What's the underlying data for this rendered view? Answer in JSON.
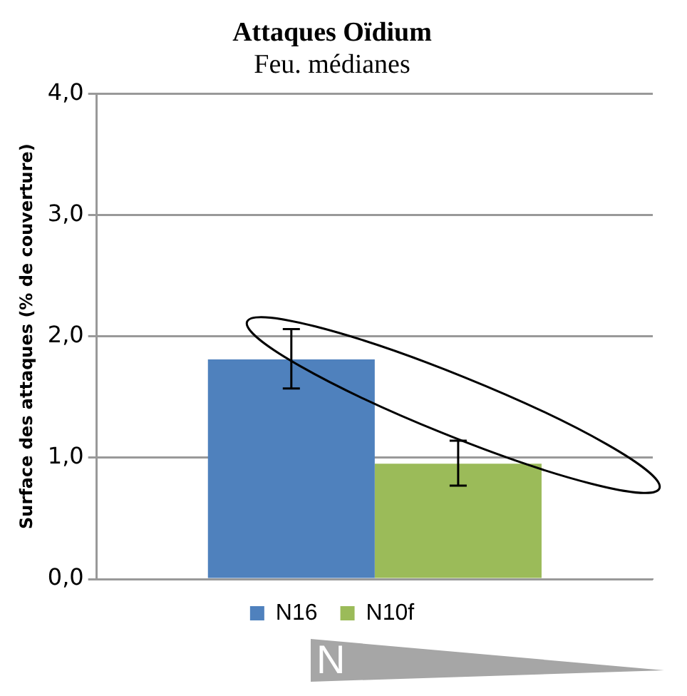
{
  "chart_data": {
    "type": "bar",
    "title": "Attaques Oïdium",
    "subtitle": "Feu. médianes",
    "ylabel": "Surface des attaques (% de couverture)",
    "categories": [
      null
    ],
    "series": [
      {
        "name": "N16",
        "color": "#4f81bd",
        "values": [
          1.81
        ],
        "errors": [
          [
            1.57,
            2.06
          ]
        ]
      },
      {
        "name": "N10f",
        "color": "#9bbb59",
        "values": [
          0.95
        ],
        "errors": [
          [
            0.77,
            1.14
          ]
        ]
      }
    ],
    "ylim": [
      0,
      4
    ],
    "yticks": [
      {
        "value": 0,
        "label": "0,0"
      },
      {
        "value": 1,
        "label": "1,0"
      },
      {
        "value": 2,
        "label": "2,0"
      },
      {
        "value": 3,
        "label": "3,0"
      },
      {
        "value": 4,
        "label": "4,0"
      }
    ],
    "grid": "y",
    "legend": "bottom",
    "annotations": [
      "N"
    ]
  }
}
